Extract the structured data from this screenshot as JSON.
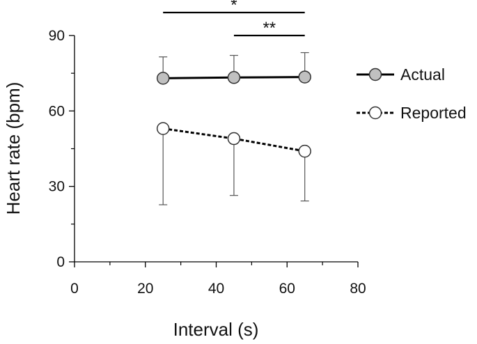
{
  "chart_data": {
    "type": "line",
    "title": "",
    "xlabel": "Interval (s)",
    "ylabel": "Heart rate (bpm)",
    "xlim": [
      0,
      80
    ],
    "ylim": [
      0,
      90
    ],
    "x_ticks": [
      0,
      20,
      40,
      60,
      80
    ],
    "x_tick_labels": [
      "0",
      "20",
      "40",
      "60",
      "80"
    ],
    "x_minor_ticks": [
      10,
      30,
      50,
      70
    ],
    "y_ticks": [
      0,
      30,
      60,
      90
    ],
    "y_tick_labels": [
      "0",
      "30",
      "60",
      "90"
    ],
    "y_minor_ticks": [
      15,
      45,
      75
    ],
    "grid": false,
    "legend_position": "right",
    "x": [
      25,
      45,
      65
    ],
    "series": [
      {
        "name": "Actual",
        "values": [
          73,
          73.3,
          73.5
        ],
        "error_up": [
          8.5,
          8.8,
          9.7
        ],
        "error_down": [
          0,
          0,
          0
        ],
        "line_style": "solid",
        "marker_fill": "#c0c0c0"
      },
      {
        "name": "Reported",
        "values": [
          53,
          49,
          44
        ],
        "error_up": [
          0,
          0,
          0
        ],
        "error_down": [
          30.3,
          22.6,
          19.8
        ],
        "line_style": "dashed",
        "marker_fill": "#ffffff"
      }
    ],
    "significance": [
      {
        "x_start": 25,
        "x_end": 65,
        "label": "*",
        "level": "upper"
      },
      {
        "x_start": 45,
        "x_end": 65,
        "label": "**",
        "level": "lower"
      }
    ]
  },
  "colors": {
    "line": "#000000",
    "error_bar": "#555555",
    "actual_marker_fill": "#c0c0c0",
    "reported_marker_fill": "#ffffff",
    "marker_stroke": "#333333"
  }
}
